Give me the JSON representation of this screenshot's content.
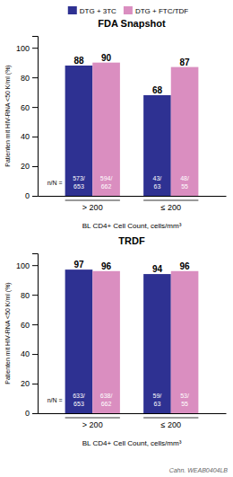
{
  "chart_data": [
    {
      "type": "bar",
      "title": "FDA Snapshot",
      "categories": [
        "> 200",
        "≤ 200"
      ],
      "series": [
        {
          "name": "DTG + 3TC",
          "color": "#2E3192",
          "values": [
            88,
            68
          ],
          "n_labels": [
            "573/\n653",
            "43/\n63"
          ]
        },
        {
          "name": "DTG + FTC/TDF",
          "color": "#DA8EC0",
          "values": [
            90,
            87
          ],
          "n_labels": [
            "594/\n662",
            "48/\n55"
          ]
        }
      ],
      "xlabel": "BL CD4+ Cell Count, cells/mm³",
      "ylabel": "Patienten mit HIV-RNA <50 K/ml (%)",
      "ylim": [
        0,
        108
      ],
      "yticks": [
        0,
        20,
        40,
        60,
        80,
        100
      ],
      "data_labels": true,
      "grid": false,
      "legend": "top",
      "annotations": [
        "n/N ="
      ]
    },
    {
      "type": "bar",
      "title": "TRDF",
      "categories": [
        "> 200",
        "≤ 200"
      ],
      "series": [
        {
          "color": "#2E3192",
          "values": [
            97,
            94
          ],
          "n_labels": [
            "633/\n653",
            "59/\n63"
          ]
        },
        {
          "color": "#DA8EC0",
          "values": [
            96,
            96
          ],
          "n_labels": [
            "638/\n662",
            "53/\n55"
          ]
        }
      ],
      "xlabel": "BL CD4+ Cell Count, cells/mm³",
      "ylabel": "Patienten mit HIV-RNA <50 K/ml (%)",
      "ylim": [
        0,
        108
      ],
      "yticks": [
        0,
        20,
        40,
        60,
        80,
        100
      ],
      "data_labels": true,
      "grid": false,
      "annotations": [
        "n/N ="
      ],
      "footnote": "Cahn. WEAB0404LB"
    }
  ]
}
